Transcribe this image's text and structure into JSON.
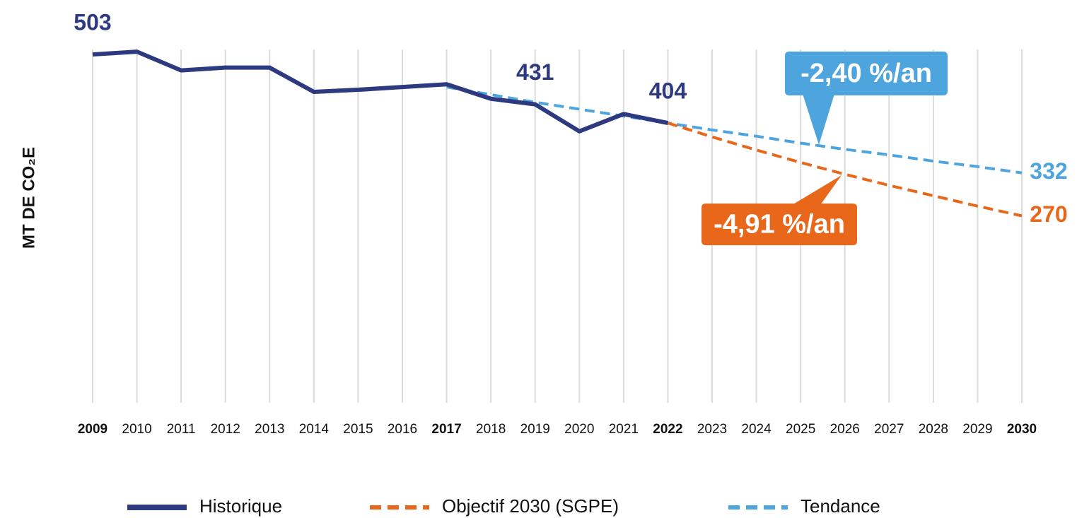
{
  "chart_data": {
    "type": "line",
    "y_label": "MT DE CO₂E",
    "categories": [
      "2009",
      "2010",
      "2011",
      "2012",
      "2013",
      "2014",
      "2015",
      "2016",
      "2017",
      "2018",
      "2019",
      "2020",
      "2021",
      "2022",
      "2023",
      "2024",
      "2025",
      "2026",
      "2027",
      "2028",
      "2029",
      "2030"
    ],
    "bold_categories": [
      0,
      8,
      13,
      21
    ],
    "ylim": [
      0,
      550
    ],
    "grid": true,
    "series": [
      {
        "name": "Historique",
        "color": "#2e3a80",
        "dashed": false,
        "values": [
          503,
          507,
          480,
          484,
          484,
          449,
          452,
          456,
          460,
          439,
          431,
          392,
          417,
          404,
          null,
          null,
          null,
          null,
          null,
          null,
          null,
          null
        ],
        "value_labels": [
          "503",
          null,
          null,
          null,
          null,
          null,
          null,
          null,
          null,
          null,
          "431",
          null,
          null,
          "404",
          null,
          null,
          null,
          null,
          null,
          null,
          null,
          null
        ]
      },
      {
        "name": "Objectif 2030 (SGPE)",
        "color": "#e8671b",
        "dashed": true,
        "values": [
          null,
          null,
          null,
          null,
          null,
          null,
          null,
          null,
          null,
          null,
          null,
          null,
          null,
          404,
          384,
          365,
          347,
          330,
          314,
          299,
          284,
          270
        ],
        "value_labels": [
          null,
          null,
          null,
          null,
          null,
          null,
          null,
          null,
          null,
          null,
          null,
          null,
          null,
          null,
          null,
          null,
          null,
          null,
          null,
          null,
          null,
          "270"
        ],
        "annotation": "-4,91 %/an"
      },
      {
        "name": "Tendance",
        "color": "#4ea4dc",
        "dashed": true,
        "values": [
          null,
          null,
          null,
          null,
          null,
          null,
          null,
          null,
          456,
          445,
          434,
          424,
          414,
          404,
          394,
          385,
          375,
          366,
          358,
          349,
          341,
          332
        ],
        "value_labels": [
          null,
          null,
          null,
          null,
          null,
          null,
          null,
          null,
          null,
          null,
          null,
          null,
          null,
          null,
          null,
          null,
          null,
          null,
          null,
          null,
          null,
          "332"
        ],
        "annotation": "-2,40 %/an"
      }
    ]
  }
}
